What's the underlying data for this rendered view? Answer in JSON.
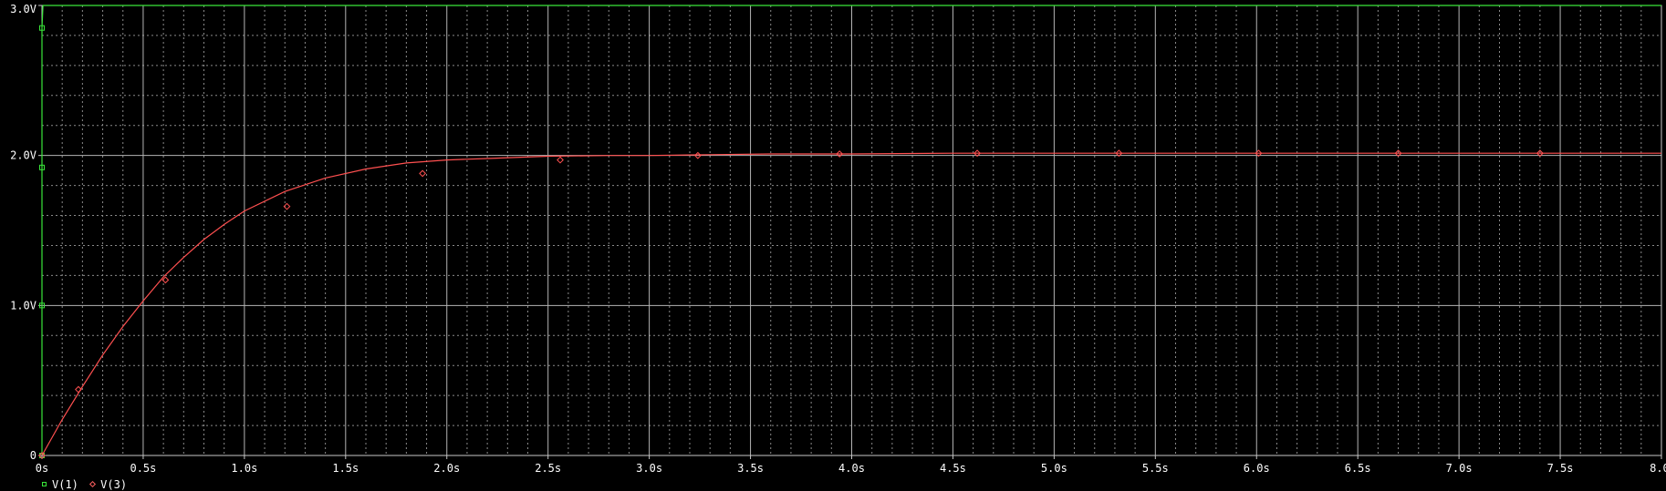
{
  "chart_data": {
    "type": "line",
    "title": "",
    "xlabel": "",
    "ylabel": "",
    "xlim": [
      0,
      8.0
    ],
    "ylim": [
      0,
      3.0
    ],
    "x_ticks": [
      "0s",
      "0.5s",
      "1.0s",
      "1.5s",
      "2.0s",
      "2.5s",
      "3.0s",
      "3.5s",
      "4.0s",
      "4.5s",
      "5.0s",
      "5.5s",
      "6.0s",
      "6.5s",
      "7.0s",
      "7.5s",
      "8.0s"
    ],
    "y_ticks": [
      "0",
      "1.0V",
      "2.0V",
      "3.0V"
    ],
    "grid": true,
    "background": "#000000",
    "grid_major_color": "#b4b4b4",
    "grid_minor_color": "#8a8a8a",
    "series": [
      {
        "name": "V(1)",
        "color": "#39e639",
        "marker": "square",
        "x": [
          0,
          0.0001,
          0.0001,
          0.005,
          8.0
        ],
        "y": [
          0,
          0,
          2.85,
          3.0,
          3.0
        ],
        "marker_points": [
          [
            0.0,
            0.0
          ],
          [
            0.0,
            1.0
          ],
          [
            0.0,
            1.92
          ],
          [
            0.0,
            2.85
          ]
        ]
      },
      {
        "name": "V(3)",
        "color": "#ff5050",
        "marker": "diamond",
        "x": [
          0,
          0.1,
          0.2,
          0.3,
          0.4,
          0.5,
          0.6,
          0.7,
          0.8,
          0.9,
          1.0,
          1.2,
          1.4,
          1.6,
          1.8,
          2.0,
          2.2,
          2.5,
          2.8,
          3.0,
          3.3,
          3.6,
          4.0,
          4.5,
          5.0,
          5.5,
          6.0,
          6.5,
          7.0,
          7.5,
          8.0
        ],
        "y": [
          0,
          0.24,
          0.46,
          0.67,
          0.86,
          1.03,
          1.19,
          1.32,
          1.44,
          1.54,
          1.63,
          1.76,
          1.85,
          1.91,
          1.95,
          1.97,
          1.98,
          1.995,
          2.0,
          2.0,
          2.005,
          2.01,
          2.01,
          2.015,
          2.015,
          2.015,
          2.015,
          2.015,
          2.015,
          2.015,
          2.015
        ],
        "marker_points": [
          [
            0.0,
            0.0
          ],
          [
            0.18,
            0.44
          ],
          [
            0.61,
            1.17
          ],
          [
            1.21,
            1.66
          ],
          [
            1.88,
            1.88
          ],
          [
            2.56,
            1.97
          ],
          [
            3.24,
            2.0
          ],
          [
            3.94,
            2.01
          ],
          [
            4.62,
            2.015
          ],
          [
            5.32,
            2.015
          ],
          [
            6.01,
            2.015
          ],
          [
            6.7,
            2.015
          ],
          [
            7.4,
            2.015
          ]
        ]
      }
    ],
    "legend_position": "bottom-left"
  }
}
